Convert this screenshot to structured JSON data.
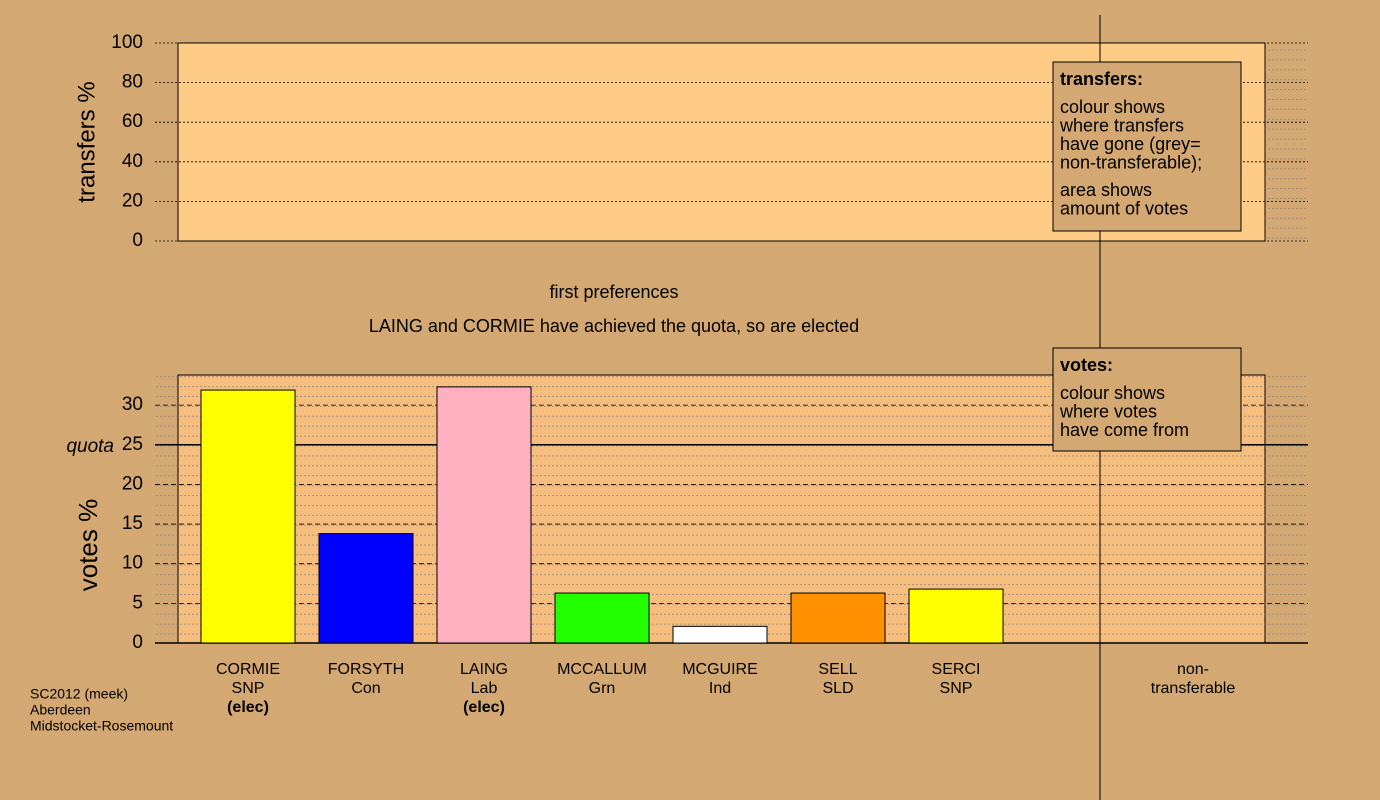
{
  "chart_data": [
    {
      "type": "bar",
      "ylabel": "transfers %",
      "ylim": [
        0,
        100
      ],
      "yticks": [
        0,
        20,
        40,
        60,
        80,
        100
      ],
      "legend": {
        "title": "transfers:",
        "paragraphs": [
          [
            "colour shows",
            "where transfers",
            "have gone (grey=",
            "non-transferable);"
          ],
          [
            "area shows",
            "amount of votes"
          ]
        ]
      }
    },
    {
      "type": "bar",
      "title": "first preferences",
      "subtitle": "LAING and CORMIE have achieved the quota, so are elected",
      "ylabel": "votes %",
      "ylim": [
        0,
        33.8
      ],
      "yticks": [
        0,
        5,
        10,
        15,
        20,
        25,
        30
      ],
      "quota": {
        "label": "quota",
        "value": 25
      },
      "categories": [
        [
          "CORMIE",
          "SNP"
        ],
        [
          "FORSYTH",
          "Con"
        ],
        [
          "LAING",
          "Lab"
        ],
        [
          "MCCALLUM",
          "Grn"
        ],
        [
          "MCGUIRE",
          "Ind"
        ],
        [
          "SELL",
          "SLD"
        ],
        [
          "SERCI",
          "SNP"
        ],
        [
          "non-",
          "transferable"
        ]
      ],
      "notes": [
        "(elec)",
        null,
        "(elec)",
        null,
        null,
        null,
        null,
        null
      ],
      "values": [
        31.9,
        13.8,
        32.3,
        6.3,
        2.1,
        6.3,
        6.8,
        null
      ],
      "colors": [
        "#ffff00",
        "#0000ff",
        "#ffb0c0",
        "#22ff00",
        "#ffffff",
        "#ff9000",
        "#ffff00",
        null
      ],
      "legend": {
        "title": "votes:",
        "paragraphs": [
          [
            "colour shows",
            "where votes",
            "have come from"
          ]
        ]
      }
    }
  ],
  "footer": [
    "SC2012 (meek)",
    "Aberdeen",
    "Midstocket-Rosemount"
  ]
}
